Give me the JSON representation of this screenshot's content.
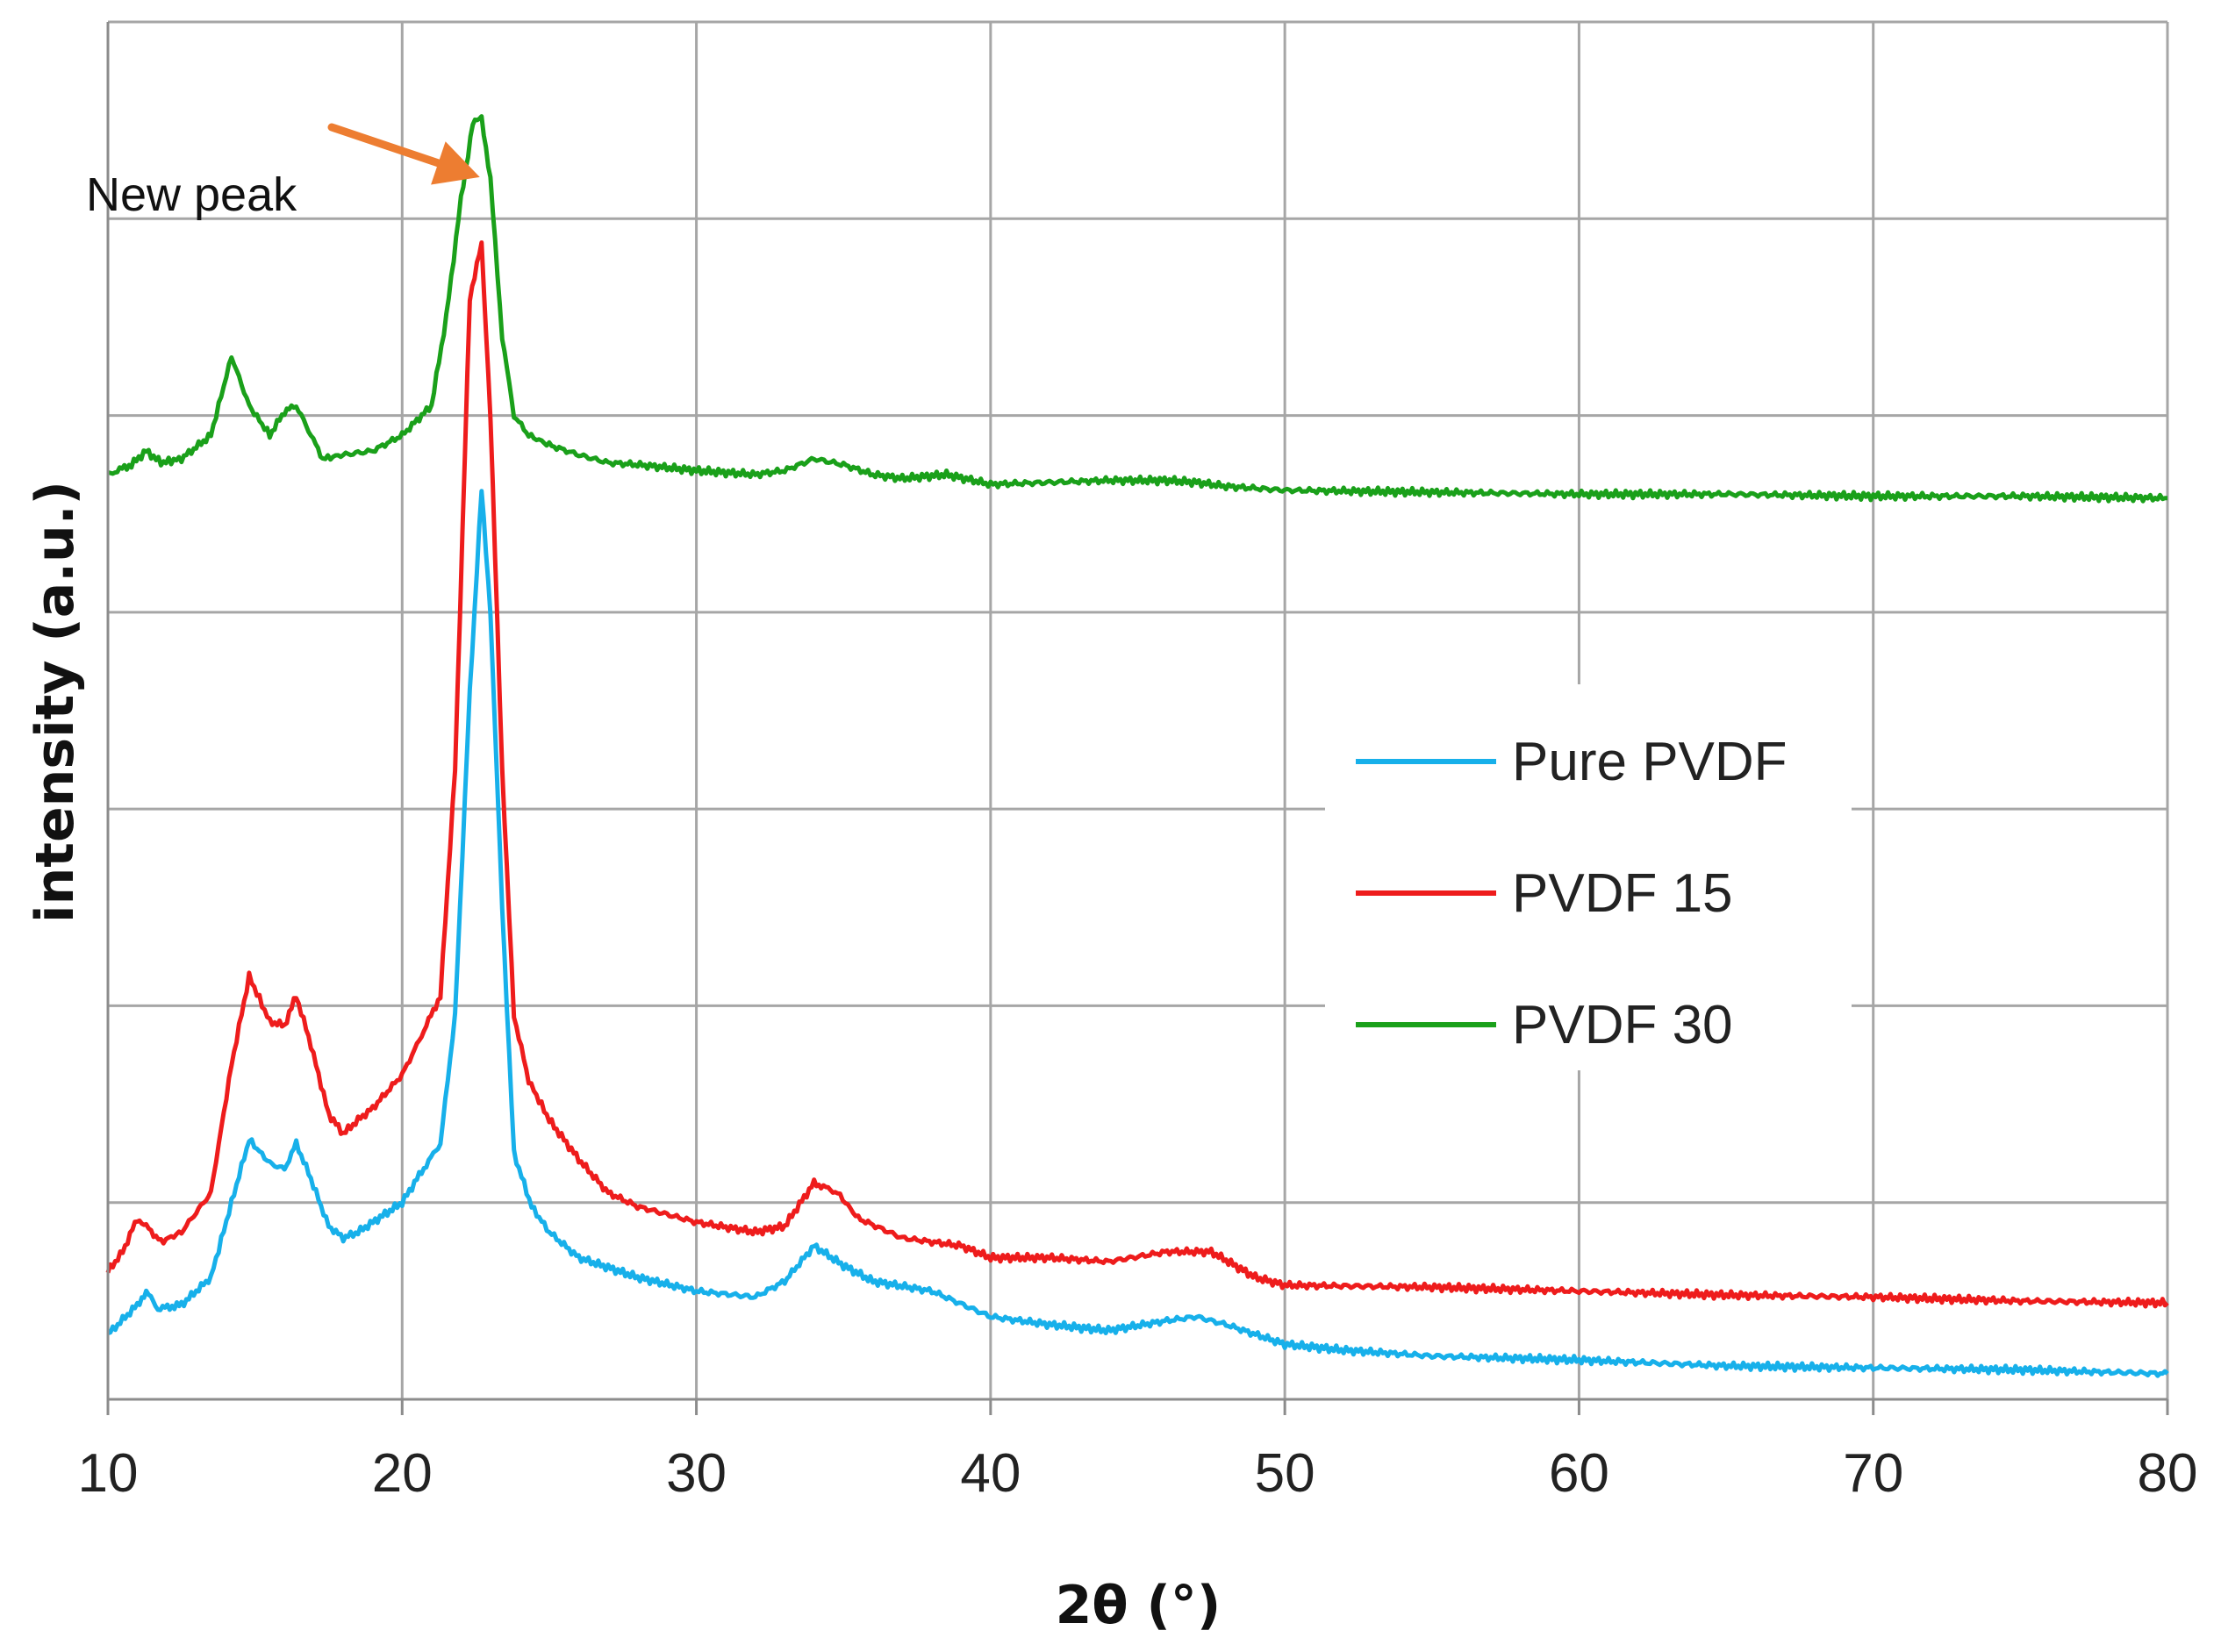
{
  "chart_data": {
    "type": "line",
    "xlabel": "2θ (°)",
    "ylabel": "intensity (a.u.)",
    "xlim": [
      10,
      80
    ],
    "ylim": [
      0,
      7
    ],
    "xticks": [
      "10",
      "20",
      "30",
      "40",
      "50",
      "60",
      "70",
      "80"
    ],
    "xtick_values": [
      10,
      20,
      30,
      40,
      50,
      60,
      70,
      80
    ],
    "ygrid_values": [
      1,
      2,
      3,
      4,
      5,
      6,
      7
    ],
    "grid": true,
    "legend_position": "right-center",
    "annotation": {
      "text": "New peak",
      "x": 22.4,
      "y": 6.1
    },
    "colors": {
      "annotation_arrow": "#ed7d31",
      "grid": "#a6a6a6"
    },
    "series": [
      {
        "name": "Pure PVDF",
        "color": "#17b0ea",
        "x": [
          10,
          11,
          11.3,
          11.7,
          12.5,
          13.5,
          14.2,
          14.8,
          15.5,
          16,
          16.4,
          16.9,
          17.5,
          18,
          18.5,
          19,
          20,
          20.5,
          21.3,
          21.8,
          22.3,
          22.7,
          23,
          23.4,
          23.8,
          24.4,
          25,
          26,
          28,
          30,
          32,
          33,
          34,
          35,
          36,
          38,
          40,
          42,
          44,
          46,
          47,
          48,
          50,
          52,
          55,
          60,
          65,
          70,
          75,
          80
        ],
        "values": [
          0.33,
          0.48,
          0.55,
          0.46,
          0.48,
          0.62,
          1.0,
          1.32,
          1.2,
          1.17,
          1.3,
          1.12,
          0.88,
          0.82,
          0.85,
          0.9,
          1.0,
          1.12,
          1.3,
          1.95,
          3.6,
          4.62,
          4.0,
          2.5,
          1.25,
          0.98,
          0.85,
          0.72,
          0.62,
          0.55,
          0.52,
          0.6,
          0.78,
          0.68,
          0.6,
          0.55,
          0.42,
          0.38,
          0.35,
          0.4,
          0.42,
          0.38,
          0.28,
          0.25,
          0.22,
          0.2,
          0.17,
          0.16,
          0.15,
          0.13
        ]
      },
      {
        "name": "PVDF 15",
        "color": "#ee1c1c",
        "x": [
          10,
          10.5,
          11,
          11.3,
          11.8,
          12.5,
          13.5,
          14.2,
          14.8,
          15.5,
          16,
          16.4,
          16.9,
          17.5,
          18,
          18.5,
          19,
          20,
          20.5,
          21.3,
          21.8,
          22.3,
          22.7,
          23,
          23.4,
          23.8,
          24.3,
          25,
          26,
          27,
          28,
          30,
          32,
          33,
          34,
          34.8,
          35.5,
          37,
          39,
          40,
          42,
          44,
          46,
          47.5,
          49,
          50,
          55,
          60,
          65,
          70,
          75,
          80
        ],
        "values": [
          0.65,
          0.75,
          0.92,
          0.88,
          0.8,
          0.85,
          1.05,
          1.7,
          2.15,
          1.92,
          1.9,
          2.05,
          1.8,
          1.45,
          1.35,
          1.42,
          1.48,
          1.65,
          1.8,
          2.05,
          3.2,
          5.6,
          5.87,
          5.0,
          3.2,
          1.95,
          1.62,
          1.42,
          1.22,
          1.05,
          0.98,
          0.9,
          0.85,
          0.88,
          1.1,
          1.05,
          0.92,
          0.82,
          0.78,
          0.72,
          0.72,
          0.7,
          0.75,
          0.75,
          0.62,
          0.58,
          0.57,
          0.55,
          0.53,
          0.52,
          0.5,
          0.49
        ]
      },
      {
        "name": "PVDF 30",
        "color": "#1aa01a",
        "x": [
          10,
          10.8,
          11.3,
          11.8,
          12.5,
          13.5,
          14.2,
          14.8,
          15.5,
          16,
          16.4,
          16.9,
          17.3,
          18,
          19,
          20,
          21,
          21.5,
          22,
          22.4,
          22.7,
          23,
          23.4,
          23.8,
          24.3,
          25,
          26,
          27,
          28,
          30,
          32,
          33,
          34,
          35,
          36,
          37,
          38.5,
          40,
          42,
          44,
          46,
          47,
          48,
          50,
          55,
          60,
          65,
          70,
          75,
          80
        ],
        "values": [
          4.7,
          4.75,
          4.82,
          4.76,
          4.78,
          4.9,
          5.3,
          5.05,
          4.9,
          5.02,
          5.05,
          4.9,
          4.78,
          4.8,
          4.82,
          4.9,
          5.05,
          5.5,
          6.1,
          6.48,
          6.52,
          6.2,
          5.4,
          5.0,
          4.9,
          4.85,
          4.8,
          4.76,
          4.75,
          4.72,
          4.7,
          4.72,
          4.78,
          4.75,
          4.7,
          4.68,
          4.7,
          4.65,
          4.66,
          4.67,
          4.67,
          4.66,
          4.64,
          4.62,
          4.61,
          4.6,
          4.6,
          4.59,
          4.59,
          4.58
        ]
      }
    ]
  }
}
